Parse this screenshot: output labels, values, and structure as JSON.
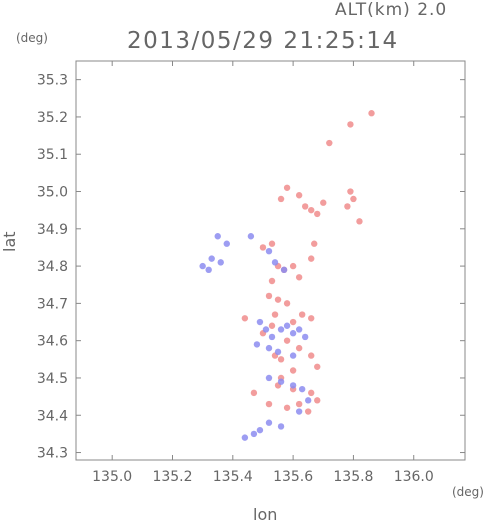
{
  "header": {
    "alt_label": "ALT(km) 2.0",
    "timestamp": "2013/05/29 21:25:14",
    "y_unit": "(deg)",
    "x_unit": "(deg)"
  },
  "chart_data": {
    "type": "scatter",
    "xlabel": "lon",
    "ylabel": "lat",
    "xlim": [
      134.88,
      136.17
    ],
    "ylim": [
      34.28,
      35.35
    ],
    "x_ticks": [
      135.0,
      135.2,
      135.4,
      135.6,
      135.8,
      136.0
    ],
    "x_tick_labels": [
      "135.0",
      "135.2",
      "135.4",
      "135.6",
      "135.8",
      "136.0"
    ],
    "y_ticks": [
      34.3,
      34.4,
      34.5,
      34.6,
      34.7,
      34.8,
      34.9,
      35.0,
      35.1,
      35.2,
      35.3
    ],
    "y_tick_labels": [
      "34.3",
      "34.4",
      "34.5",
      "34.6",
      "34.7",
      "34.8",
      "34.9",
      "35.0",
      "35.1",
      "35.2",
      "35.3"
    ],
    "grid": false,
    "colors": {
      "positive": "#f08c8c",
      "negative": "#8c8cf0",
      "axis": "#888888"
    },
    "series": [
      {
        "values": [
          [
            135.86,
            35.21
          ],
          [
            135.79,
            35.18
          ],
          [
            135.72,
            35.13
          ],
          [
            135.58,
            35.01
          ],
          [
            135.56,
            34.98
          ],
          [
            135.62,
            34.99
          ],
          [
            135.64,
            34.96
          ],
          [
            135.66,
            34.95
          ],
          [
            135.68,
            34.94
          ],
          [
            135.7,
            34.97
          ],
          [
            135.79,
            35.0
          ],
          [
            135.8,
            34.98
          ],
          [
            135.78,
            34.96
          ],
          [
            135.82,
            34.92
          ],
          [
            135.53,
            34.86
          ],
          [
            135.5,
            34.85
          ],
          [
            135.67,
            34.86
          ],
          [
            135.66,
            34.82
          ],
          [
            135.55,
            34.8
          ],
          [
            135.57,
            34.79
          ],
          [
            135.6,
            34.8
          ],
          [
            135.62,
            34.77
          ],
          [
            135.53,
            34.76
          ],
          [
            135.52,
            34.72
          ],
          [
            135.55,
            34.71
          ],
          [
            135.58,
            34.7
          ],
          [
            135.44,
            34.66
          ],
          [
            135.54,
            34.67
          ],
          [
            135.53,
            34.64
          ],
          [
            135.5,
            34.62
          ],
          [
            135.6,
            34.65
          ],
          [
            135.63,
            34.67
          ],
          [
            135.66,
            34.66
          ],
          [
            135.58,
            34.6
          ],
          [
            135.62,
            34.58
          ],
          [
            135.54,
            34.56
          ],
          [
            135.56,
            34.55
          ],
          [
            135.66,
            34.56
          ],
          [
            135.6,
            34.52
          ],
          [
            135.68,
            34.53
          ],
          [
            135.55,
            34.48
          ],
          [
            135.6,
            34.47
          ],
          [
            135.66,
            34.46
          ],
          [
            135.68,
            34.44
          ],
          [
            135.62,
            34.43
          ],
          [
            135.58,
            34.42
          ],
          [
            135.65,
            34.41
          ],
          [
            135.52,
            34.43
          ],
          [
            135.47,
            34.46
          ],
          [
            135.56,
            34.5
          ]
        ]
      },
      {
        "values": [
          [
            135.35,
            34.88
          ],
          [
            135.38,
            34.86
          ],
          [
            135.33,
            34.82
          ],
          [
            135.36,
            34.81
          ],
          [
            135.3,
            34.8
          ],
          [
            135.32,
            34.79
          ],
          [
            135.46,
            34.88
          ],
          [
            135.52,
            34.84
          ],
          [
            135.54,
            34.81
          ],
          [
            135.57,
            34.79
          ],
          [
            135.49,
            34.65
          ],
          [
            135.51,
            34.63
          ],
          [
            135.53,
            34.61
          ],
          [
            135.56,
            34.63
          ],
          [
            135.58,
            34.64
          ],
          [
            135.6,
            34.62
          ],
          [
            135.62,
            34.63
          ],
          [
            135.64,
            34.61
          ],
          [
            135.48,
            34.59
          ],
          [
            135.52,
            34.58
          ],
          [
            135.55,
            34.57
          ],
          [
            135.6,
            34.56
          ],
          [
            135.52,
            34.5
          ],
          [
            135.56,
            34.49
          ],
          [
            135.6,
            34.48
          ],
          [
            135.63,
            34.47
          ],
          [
            135.65,
            34.44
          ],
          [
            135.62,
            34.41
          ],
          [
            135.52,
            34.38
          ],
          [
            135.47,
            34.35
          ],
          [
            135.44,
            34.34
          ],
          [
            135.49,
            34.36
          ],
          [
            135.56,
            34.37
          ]
        ]
      }
    ]
  }
}
